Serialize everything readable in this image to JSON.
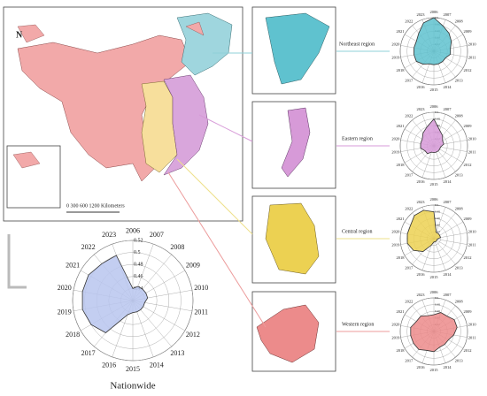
{
  "map": {
    "north": "N",
    "scale_label": "0  300 600     1200 Kilometers"
  },
  "chart_data": [
    {
      "type": "radar",
      "title": "Nationwide",
      "color": "#b9c6ee",
      "line": "#333",
      "categories": [
        "2006",
        "2007",
        "2008",
        "2009",
        "2010",
        "2011",
        "2012",
        "2013",
        "2014",
        "2015",
        "2016",
        "2017",
        "2018",
        "2019",
        "2020",
        "2021",
        "2022",
        "2023"
      ],
      "values": [
        0.44,
        0.445,
        0.445,
        0.445,
        0.445,
        0.44,
        0.44,
        0.44,
        0.44,
        0.44,
        0.445,
        0.49,
        0.5,
        0.505,
        0.505,
        0.505,
        0.5,
        0.5
      ],
      "rlim": [
        0.42,
        0.52
      ],
      "rticks": [
        0.44,
        0.46,
        0.48,
        0.5,
        0.52
      ]
    },
    {
      "type": "radar",
      "title": "Northeast region",
      "color": "#5fc2cf",
      "line": "#333",
      "categories": [
        "2006",
        "2007",
        "2008",
        "2009",
        "2010",
        "2011",
        "2012",
        "2013",
        "2014",
        "2015",
        "2016",
        "2017",
        "2018",
        "2019",
        "2020",
        "2021",
        "2022",
        "2023"
      ],
      "values": [
        0.5,
        0.48,
        0.47,
        0.46,
        0.45,
        0.45,
        0.44,
        0.44,
        0.44,
        0.44,
        0.44,
        0.45,
        0.46,
        0.46,
        0.46,
        0.46,
        0.47,
        0.49
      ],
      "rlim": [
        0.4,
        0.5
      ],
      "rticks": [
        0.42,
        0.44,
        0.46,
        0.48,
        0.5
      ]
    },
    {
      "type": "radar",
      "title": "Eastern region",
      "color": "#d79ad8",
      "line": "#333",
      "categories": [
        "2006",
        "2007",
        "2008",
        "2009",
        "2010",
        "2011",
        "2012",
        "2013",
        "2014",
        "2015",
        "2016",
        "2017",
        "2018",
        "2019",
        "2020",
        "2021",
        "2022",
        "2023"
      ],
      "values": [
        0.48,
        0.45,
        0.44,
        0.43,
        0.43,
        0.42,
        0.42,
        0.42,
        0.42,
        0.42,
        0.42,
        0.43,
        0.43,
        0.44,
        0.44,
        0.44,
        0.45,
        0.46
      ],
      "rlim": [
        0.4,
        0.5
      ],
      "rticks": [
        0.42,
        0.44,
        0.46,
        0.48,
        0.5
      ]
    },
    {
      "type": "radar",
      "title": "Central region",
      "color": "#ecd152",
      "line": "#333",
      "categories": [
        "2006",
        "2007",
        "2008",
        "2009",
        "2010",
        "2011",
        "2012",
        "2013",
        "2014",
        "2015",
        "2016",
        "2017",
        "2018",
        "2019",
        "2020",
        "2021",
        "2022",
        "2023"
      ],
      "values": [
        0.48,
        0.42,
        0.42,
        0.42,
        0.42,
        0.41,
        0.41,
        0.41,
        0.41,
        0.41,
        0.42,
        0.45,
        0.47,
        0.48,
        0.48,
        0.48,
        0.49,
        0.49
      ],
      "rlim": [
        0.4,
        0.5
      ],
      "rticks": [
        0.42,
        0.44,
        0.46,
        0.48,
        0.5
      ]
    },
    {
      "type": "radar",
      "title": "Western region",
      "color": "#ec8b8b",
      "line": "#333",
      "categories": [
        "2006",
        "2007",
        "2008",
        "2009",
        "2010",
        "2011",
        "2012",
        "2013",
        "2014",
        "2015",
        "2016",
        "2017",
        "2018",
        "2019",
        "2020",
        "2021",
        "2022",
        "2023"
      ],
      "values": [
        0.45,
        0.46,
        0.46,
        0.47,
        0.47,
        0.46,
        0.45,
        0.45,
        0.45,
        0.46,
        0.46,
        0.47,
        0.47,
        0.47,
        0.47,
        0.46,
        0.46,
        0.45
      ],
      "rlim": [
        0.4,
        0.5
      ],
      "rticks": [
        0.42,
        0.44,
        0.46,
        0.48,
        0.5
      ]
    }
  ]
}
